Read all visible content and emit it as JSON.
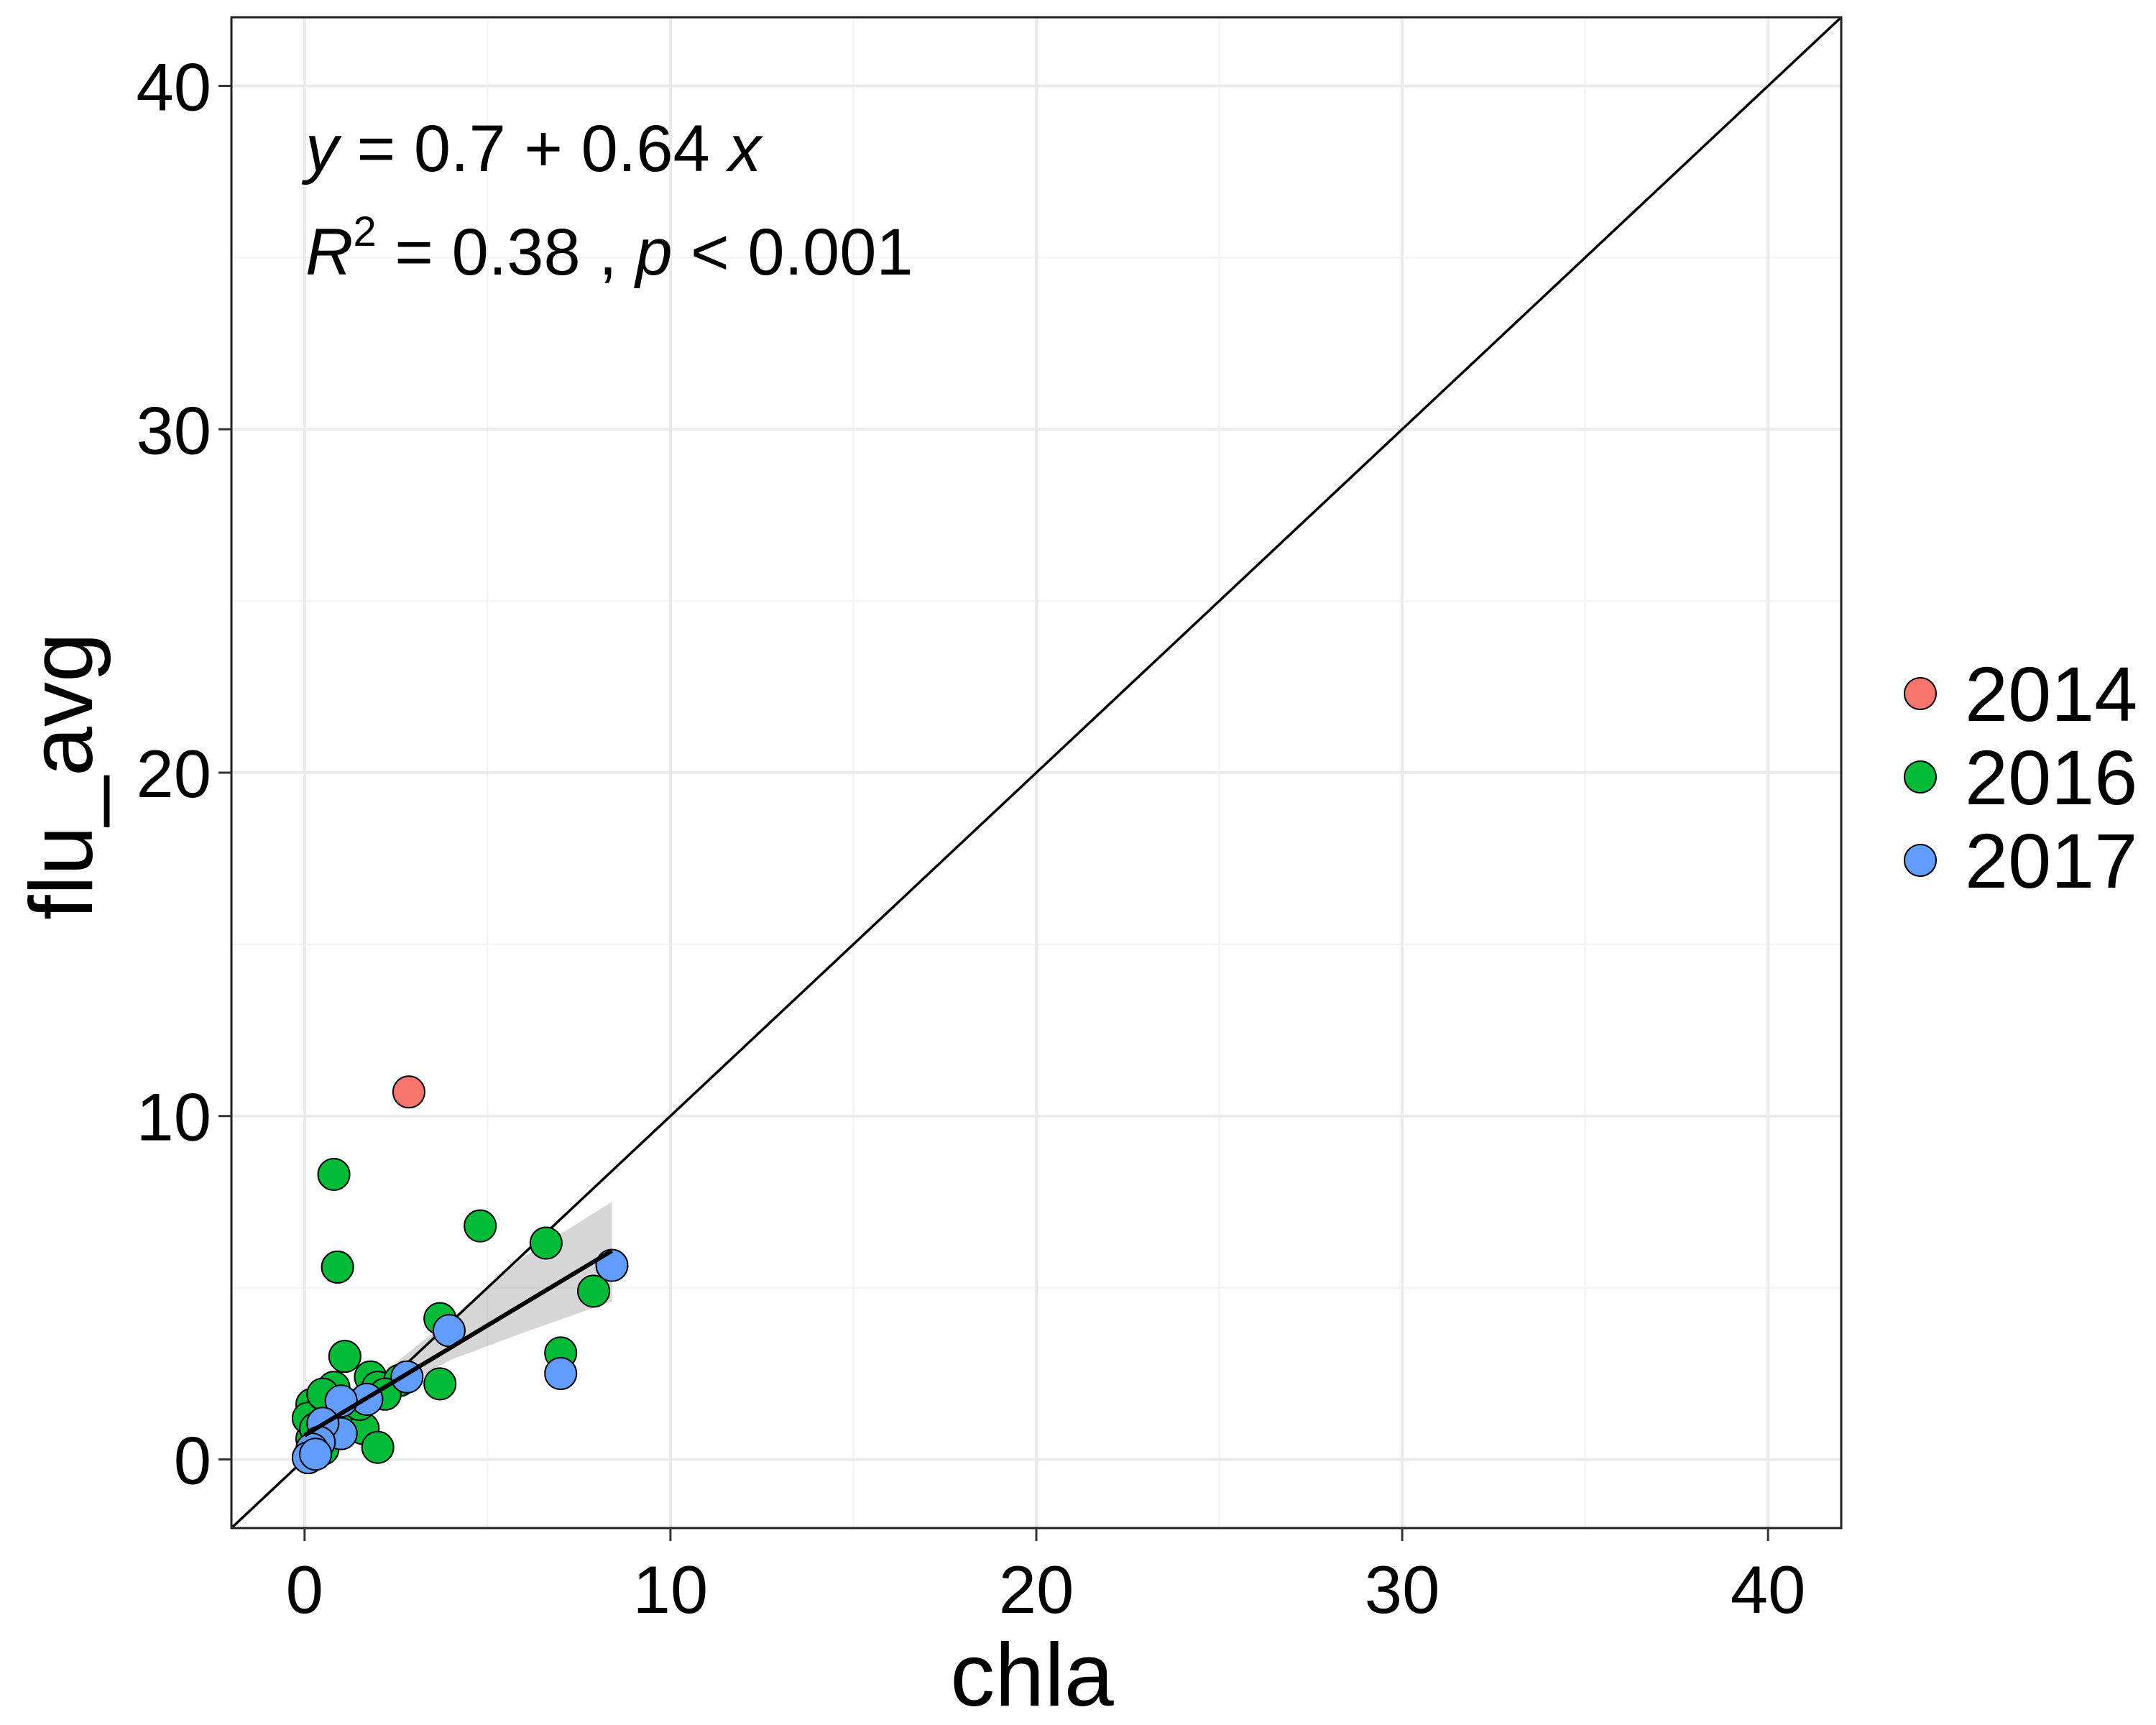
{
  "chart_data": {
    "type": "scatter",
    "xlabel": "chla",
    "ylabel": "flu_avg",
    "xlim": [
      -2,
      42
    ],
    "ylim": [
      -2,
      42
    ],
    "x_ticks": [
      0,
      10,
      20,
      30,
      40
    ],
    "y_ticks": [
      0,
      10,
      20,
      30,
      40
    ],
    "x_tick_labels": [
      "0",
      "10",
      "20",
      "30",
      "40"
    ],
    "y_tick_labels": [
      "0",
      "10",
      "20",
      "30",
      "40"
    ],
    "grid": true,
    "legend_position": "right",
    "annotation": {
      "line1": {
        "y": "y",
        "eq": " = 0.7 + 0.64 ",
        "x": "x"
      },
      "line2": {
        "R": "R",
        "sup": "2",
        "mid": " = 0.38 , ",
        "p": "p",
        "tail": " < 0.001"
      }
    },
    "identity_line": {
      "from": [
        -2,
        -2
      ],
      "to": [
        42,
        42
      ]
    },
    "fit": {
      "intercept": 0.7,
      "slope": 0.64,
      "x_range": [
        0,
        8.4
      ],
      "ci": [
        {
          "x": 0,
          "lo": 0.0,
          "hi": 1.4
        },
        {
          "x": 2,
          "lo": 1.7,
          "hi": 2.4
        },
        {
          "x": 4,
          "lo": 2.9,
          "hi": 4.1
        },
        {
          "x": 6,
          "lo": 3.7,
          "hi": 5.9
        },
        {
          "x": 8.4,
          "lo": 4.6,
          "hi": 7.5
        }
      ]
    },
    "series": [
      {
        "name": "2014",
        "color": "#F8766D",
        "points": [
          [
            2.85,
            10.7
          ]
        ]
      },
      {
        "name": "2016",
        "color": "#00BA38",
        "points": [
          [
            0.8,
            8.3
          ],
          [
            0.9,
            5.6
          ],
          [
            4.8,
            6.8
          ],
          [
            6.6,
            6.3
          ],
          [
            7.9,
            4.9
          ],
          [
            3.7,
            4.1
          ],
          [
            3.7,
            2.2
          ],
          [
            7.0,
            3.1
          ],
          [
            1.1,
            3.0
          ],
          [
            0.8,
            2.1
          ],
          [
            1.8,
            2.4
          ],
          [
            2.0,
            2.1
          ],
          [
            2.6,
            2.3
          ],
          [
            0.2,
            1.6
          ],
          [
            0.4,
            1.3
          ],
          [
            0.2,
            0.6
          ],
          [
            0.1,
            1.2
          ],
          [
            0.6,
            0.6
          ],
          [
            0.9,
            0.9
          ],
          [
            1.3,
            1.1
          ],
          [
            1.6,
            0.9
          ],
          [
            2.0,
            0.35
          ],
          [
            0.5,
            0.3
          ],
          [
            0.3,
            0.9
          ],
          [
            1.0,
            1.5
          ],
          [
            1.5,
            1.6
          ],
          [
            2.2,
            1.9
          ],
          [
            0.7,
            1.7
          ],
          [
            0.2,
            0.2
          ],
          [
            0.5,
            1.9
          ]
        ]
      },
      {
        "name": "2017",
        "color": "#619CFF",
        "points": [
          [
            8.4,
            5.65
          ],
          [
            3.95,
            3.75
          ],
          [
            7.0,
            2.5
          ],
          [
            2.8,
            2.4
          ],
          [
            1.7,
            1.75
          ],
          [
            1.0,
            1.7
          ],
          [
            1.0,
            0.75
          ],
          [
            0.5,
            1.05
          ],
          [
            0.4,
            0.5
          ],
          [
            0.2,
            0.3
          ],
          [
            0.1,
            0.05
          ],
          [
            0.3,
            0.15
          ]
        ]
      }
    ]
  }
}
